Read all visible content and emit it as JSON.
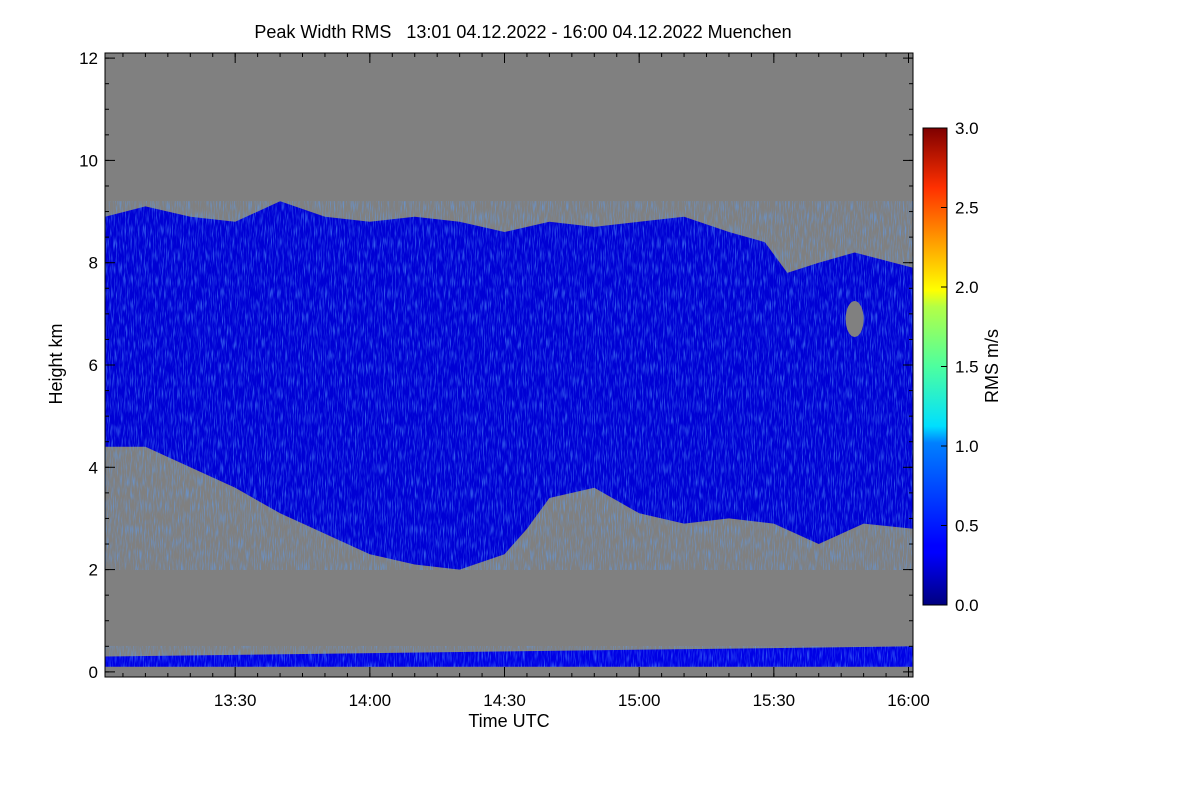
{
  "chart_data": {
    "type": "heatmap",
    "title": "Peak Width RMS   13:01 04.12.2022 - 16:00 04.12.2022 Muenchen",
    "xlabel": "Time UTC",
    "ylabel": "Height km",
    "xlim": [
      "13:01",
      "16:01"
    ],
    "xticks": [
      "13:30",
      "14:00",
      "14:30",
      "15:00",
      "15:30",
      "16:00"
    ],
    "ylim": [
      -0.1,
      12.1
    ],
    "yticks": [
      0,
      2,
      4,
      6,
      8,
      10,
      12
    ],
    "colorbar": {
      "label": "RMS m/s",
      "range": [
        0.0,
        3.0
      ],
      "ticks": [
        "0.0",
        "0.5",
        "1.0",
        "1.5",
        "2.0",
        "2.5",
        "3.0"
      ],
      "colormap": "jet"
    },
    "no_data_color": "#808080",
    "layers": [
      {
        "name_shown": false,
        "rms_typical": 0.25,
        "top_km": [
          [
            "13:01",
            8.9
          ],
          [
            "13:10",
            9.1
          ],
          [
            "13:20",
            8.9
          ],
          [
            "13:30",
            8.8
          ],
          [
            "13:40",
            9.2
          ],
          [
            "13:50",
            8.9
          ],
          [
            "14:00",
            8.8
          ],
          [
            "14:10",
            8.9
          ],
          [
            "14:20",
            8.8
          ],
          [
            "14:30",
            8.6
          ],
          [
            "14:40",
            8.8
          ],
          [
            "14:50",
            8.7
          ],
          [
            "15:00",
            8.8
          ],
          [
            "15:10",
            8.9
          ],
          [
            "15:20",
            8.6
          ],
          [
            "15:28",
            8.4
          ],
          [
            "15:33",
            7.8
          ],
          [
            "15:40",
            8.0
          ],
          [
            "15:48",
            8.2
          ],
          [
            "16:01",
            7.9
          ]
        ],
        "base_km": [
          [
            "13:01",
            4.4
          ],
          [
            "13:10",
            4.4
          ],
          [
            "13:20",
            4.0
          ],
          [
            "13:30",
            3.6
          ],
          [
            "13:40",
            3.1
          ],
          [
            "13:50",
            2.7
          ],
          [
            "14:00",
            2.3
          ],
          [
            "14:10",
            2.1
          ],
          [
            "14:20",
            2.0
          ],
          [
            "14:30",
            2.3
          ],
          [
            "14:35",
            2.8
          ],
          [
            "14:40",
            3.4
          ],
          [
            "14:50",
            3.6
          ],
          [
            "15:00",
            3.1
          ],
          [
            "15:10",
            2.9
          ],
          [
            "15:20",
            3.0
          ],
          [
            "15:30",
            2.9
          ],
          [
            "15:40",
            2.5
          ],
          [
            "15:50",
            2.9
          ],
          [
            "16:01",
            2.8
          ]
        ]
      },
      {
        "name_shown": false,
        "rms_typical": 0.3,
        "top_km": [
          [
            "13:01",
            0.3
          ],
          [
            "16:01",
            0.5
          ]
        ],
        "base_km": [
          [
            "13:01",
            0.1
          ],
          [
            "16:01",
            0.1
          ]
        ]
      }
    ],
    "gaps": [
      {
        "time": "15:48",
        "height_km": 6.9
      }
    ],
    "grid": false,
    "legend": "colorbar-right"
  }
}
